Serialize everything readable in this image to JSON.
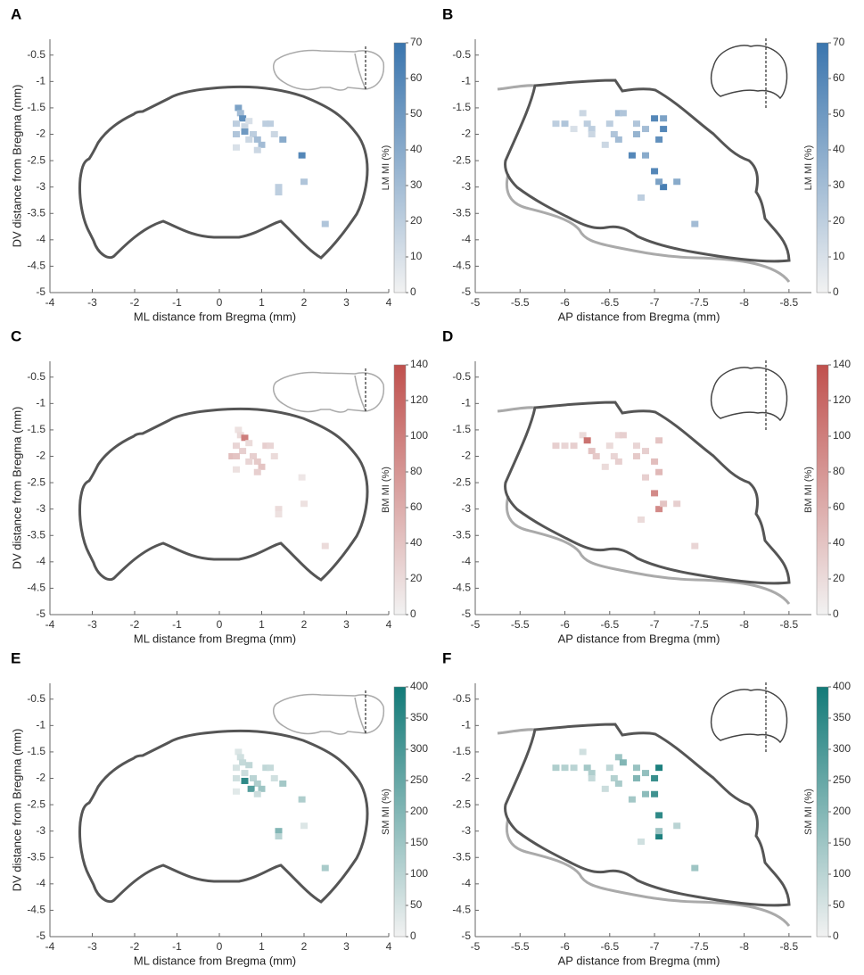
{
  "chart_data": [
    {
      "type": "heatmap",
      "panel_label": "A",
      "xlabel": "ML distance from Bregma (mm)",
      "ylabel": "DV distance from Bregma (mm)",
      "colorbar_label": "LM MI (%)",
      "xlim": [
        -4,
        4
      ],
      "ylim": [
        -0.2,
        -5
      ],
      "xticks": [
        -4,
        -3,
        -2,
        -1,
        0,
        1,
        2,
        3,
        4
      ],
      "yticks": [
        -0.5,
        -1,
        -1.5,
        -2,
        -2.5,
        -3,
        -3.5,
        -4,
        -4.5,
        -5
      ],
      "clim": [
        0,
        70
      ],
      "cticks": [
        0,
        10,
        20,
        30,
        40,
        50,
        60,
        70
      ],
      "colormap": [
        "#f2f2f2",
        "#3a75ae"
      ],
      "x": [
        0.45,
        0.5,
        0.55,
        0.4,
        0.6,
        0.7,
        0.6,
        0.4,
        0.8,
        0.9,
        1.0,
        0.7,
        1.1,
        1.2,
        1.3,
        1.5,
        0.4,
        0.9,
        1.95,
        2.0,
        1.4,
        1.4,
        2.5
      ],
      "y": [
        -1.5,
        -1.6,
        -1.7,
        -1.8,
        -1.85,
        -1.75,
        -1.95,
        -2.0,
        -2.0,
        -2.1,
        -2.2,
        -2.1,
        -1.8,
        -1.8,
        -2.0,
        -2.1,
        -2.25,
        -2.3,
        -2.4,
        -2.9,
        -3.0,
        -3.1,
        -3.7
      ],
      "values": [
        45,
        30,
        55,
        20,
        15,
        10,
        50,
        25,
        20,
        30,
        30,
        15,
        20,
        20,
        15,
        40,
        10,
        15,
        60,
        25,
        20,
        20,
        25
      ]
    },
    {
      "type": "heatmap",
      "panel_label": "B",
      "xlabel": "AP distance from Bregma (mm)",
      "colorbar_label": "LM MI (%)",
      "xlim": [
        -5,
        -8.75
      ],
      "ylim": [
        -0.2,
        -5
      ],
      "xticks": [
        -5,
        -5.5,
        -6,
        -6.5,
        -7,
        -7.5,
        -8,
        -8.5
      ],
      "yticks": [
        -0.5,
        -1,
        -1.5,
        -2,
        -2.5,
        -3,
        -3.5,
        -4,
        -4.5,
        -5
      ],
      "clim": [
        0,
        70
      ],
      "cticks": [
        0,
        10,
        20,
        30,
        40,
        50,
        60,
        70
      ],
      "colormap": [
        "#f2f2f2",
        "#3a75ae"
      ],
      "x": [
        -5.9,
        -6.0,
        -6.2,
        -6.25,
        -6.1,
        -6.3,
        -6.3,
        -6.6,
        -6.65,
        -6.5,
        -6.55,
        -6.6,
        -6.8,
        -6.8,
        -6.9,
        -7.0,
        -7.1,
        -7.05,
        -7.1,
        -6.75,
        -6.9,
        -7.0,
        -7.1,
        -7.05,
        -7.25,
        -6.85,
        -7.45,
        -6.45
      ],
      "y": [
        -1.8,
        -1.8,
        -1.6,
        -1.8,
        -1.9,
        -1.9,
        -2.0,
        -1.6,
        -1.6,
        -1.8,
        -2.0,
        -2.1,
        -1.8,
        -2.0,
        -1.9,
        -1.7,
        -1.7,
        -2.1,
        -1.9,
        -2.4,
        -2.4,
        -2.7,
        -3.0,
        -2.9,
        -2.9,
        -3.2,
        -3.7,
        -2.2
      ],
      "values": [
        20,
        25,
        15,
        20,
        10,
        20,
        15,
        30,
        25,
        20,
        25,
        30,
        25,
        35,
        30,
        60,
        45,
        55,
        60,
        60,
        40,
        60,
        65,
        45,
        40,
        20,
        30,
        15
      ]
    },
    {
      "type": "heatmap",
      "panel_label": "C",
      "xlabel": "ML distance from Bregma (mm)",
      "ylabel": "DV distance from Bregma (mm)",
      "colorbar_label": "BM MI (%)",
      "xlim": [
        -4,
        4
      ],
      "ylim": [
        -0.2,
        -5
      ],
      "xticks": [
        -4,
        -3,
        -2,
        -1,
        0,
        1,
        2,
        3,
        4
      ],
      "yticks": [
        -0.5,
        -1,
        -1.5,
        -2,
        -2.5,
        -3,
        -3.5,
        -4,
        -4.5,
        -5
      ],
      "clim": [
        0,
        140
      ],
      "cticks": [
        0,
        20,
        40,
        60,
        80,
        100,
        120,
        140
      ],
      "colormap": [
        "#f2f2f2",
        "#c0504d"
      ],
      "x": [
        0.45,
        0.5,
        0.6,
        0.4,
        0.55,
        0.7,
        0.3,
        0.4,
        0.8,
        0.9,
        1.0,
        0.7,
        1.1,
        1.2,
        1.3,
        0.4,
        0.9,
        1.95,
        2.0,
        1.4,
        1.4,
        2.5
      ],
      "y": [
        -1.5,
        -1.6,
        -1.65,
        -1.8,
        -1.9,
        -1.75,
        -2.0,
        -2.0,
        -2.0,
        -2.1,
        -2.2,
        -2.1,
        -1.8,
        -1.8,
        -2.0,
        -2.25,
        -2.3,
        -2.4,
        -2.9,
        -3.0,
        -3.1,
        -3.7
      ],
      "values": [
        15,
        20,
        100,
        25,
        30,
        20,
        45,
        40,
        30,
        35,
        40,
        25,
        30,
        25,
        20,
        15,
        30,
        10,
        15,
        20,
        15,
        20
      ]
    },
    {
      "type": "heatmap",
      "panel_label": "D",
      "xlabel": "AP distance from Bregma (mm)",
      "colorbar_label": "BM MI (%)",
      "xlim": [
        -5,
        -8.75
      ],
      "ylim": [
        -0.2,
        -5
      ],
      "xticks": [
        -5,
        -5.5,
        -6,
        -6.5,
        -7,
        -7.5,
        -8,
        -8.5
      ],
      "yticks": [
        -0.5,
        -1,
        -1.5,
        -2,
        -2.5,
        -3,
        -3.5,
        -4,
        -4.5,
        -5
      ],
      "clim": [
        0,
        140
      ],
      "cticks": [
        0,
        20,
        40,
        60,
        80,
        100,
        120,
        140
      ],
      "colormap": [
        "#f2f2f2",
        "#c0504d"
      ],
      "x": [
        -5.9,
        -6.0,
        -6.1,
        -6.2,
        -6.25,
        -6.3,
        -6.35,
        -6.6,
        -6.65,
        -6.5,
        -6.55,
        -6.6,
        -6.8,
        -6.8,
        -6.9,
        -7.05,
        -7.0,
        -7.05,
        -6.9,
        -7.0,
        -7.05,
        -7.1,
        -7.25,
        -6.85,
        -7.45,
        -6.45
      ],
      "y": [
        -1.8,
        -1.8,
        -1.8,
        -1.6,
        -1.7,
        -1.9,
        -2.0,
        -1.6,
        -1.6,
        -1.8,
        -2.0,
        -2.1,
        -1.8,
        -2.0,
        -1.9,
        -1.7,
        -2.1,
        -2.3,
        -2.4,
        -2.7,
        -3.0,
        -2.9,
        -2.9,
        -3.2,
        -3.7,
        -2.2
      ],
      "values": [
        30,
        25,
        30,
        20,
        110,
        40,
        35,
        25,
        30,
        20,
        25,
        30,
        25,
        35,
        30,
        40,
        45,
        50,
        30,
        90,
        90,
        40,
        30,
        20,
        25,
        20
      ]
    },
    {
      "type": "heatmap",
      "panel_label": "E",
      "xlabel": "ML distance from Bregma (mm)",
      "ylabel": "DV distance from Bregma (mm)",
      "colorbar_label": "SM MI (%)",
      "xlim": [
        -4,
        4
      ],
      "ylim": [
        -0.2,
        -5
      ],
      "xticks": [
        -4,
        -3,
        -2,
        -1,
        0,
        1,
        2,
        3,
        4
      ],
      "yticks": [
        -0.5,
        -1,
        -1.5,
        -2,
        -2.5,
        -3,
        -3.5,
        -4,
        -4.5,
        -5
      ],
      "clim": [
        0,
        400
      ],
      "cticks": [
        0,
        50,
        100,
        150,
        200,
        250,
        300,
        350,
        400
      ],
      "colormap": [
        "#f2f2f2",
        "#127a78"
      ],
      "x": [
        0.45,
        0.5,
        0.55,
        0.4,
        0.6,
        0.7,
        0.6,
        0.4,
        0.8,
        0.9,
        1.0,
        0.75,
        1.1,
        1.2,
        1.3,
        1.5,
        0.4,
        0.9,
        1.95,
        2.0,
        1.4,
        1.4,
        2.5
      ],
      "y": [
        -1.5,
        -1.6,
        -1.7,
        -1.8,
        -2.05,
        -1.75,
        -1.9,
        -2.0,
        -2.0,
        -2.1,
        -2.2,
        -2.2,
        -1.8,
        -1.8,
        -2.0,
        -2.1,
        -2.25,
        -2.3,
        -2.4,
        -2.9,
        -3.0,
        -3.1,
        -3.7
      ],
      "values": [
        40,
        60,
        80,
        50,
        350,
        90,
        70,
        60,
        100,
        120,
        150,
        280,
        90,
        80,
        60,
        140,
        30,
        70,
        120,
        40,
        200,
        100,
        130
      ]
    },
    {
      "type": "heatmap",
      "panel_label": "F",
      "xlabel": "AP distance from Bregma (mm)",
      "colorbar_label": "SM MI (%)",
      "xlim": [
        -5,
        -8.75
      ],
      "ylim": [
        -0.2,
        -5
      ],
      "xticks": [
        -5,
        -5.5,
        -6,
        -6.5,
        -7,
        -7.5,
        -8,
        -8.5
      ],
      "yticks": [
        -0.5,
        -1,
        -1.5,
        -2,
        -2.5,
        -3,
        -3.5,
        -4,
        -4.5,
        -5
      ],
      "clim": [
        0,
        400
      ],
      "cticks": [
        0,
        50,
        100,
        150,
        200,
        250,
        300,
        350,
        400
      ],
      "colormap": [
        "#f2f2f2",
        "#127a78"
      ],
      "x": [
        -5.9,
        -6.0,
        -6.1,
        -6.2,
        -6.25,
        -6.3,
        -6.3,
        -6.6,
        -6.65,
        -6.5,
        -6.55,
        -6.6,
        -6.8,
        -6.8,
        -6.9,
        -7.05,
        -7.0,
        -7.0,
        -7.05,
        -6.75,
        -6.9,
        -7.05,
        -7.05,
        -7.25,
        -6.85,
        -7.45,
        -6.45
      ],
      "y": [
        -1.8,
        -1.8,
        -1.8,
        -1.5,
        -1.8,
        -1.9,
        -2.0,
        -1.6,
        -1.7,
        -1.8,
        -2.0,
        -2.1,
        -1.8,
        -2.0,
        -1.9,
        -1.8,
        -2.0,
        -2.3,
        -2.7,
        -2.4,
        -2.3,
        -3.1,
        -3.0,
        -2.9,
        -3.2,
        -3.7,
        -2.2
      ],
      "values": [
        120,
        110,
        100,
        60,
        140,
        120,
        80,
        150,
        200,
        90,
        110,
        130,
        160,
        200,
        170,
        380,
        330,
        320,
        350,
        140,
        180,
        380,
        150,
        100,
        60,
        150,
        70
      ]
    }
  ]
}
